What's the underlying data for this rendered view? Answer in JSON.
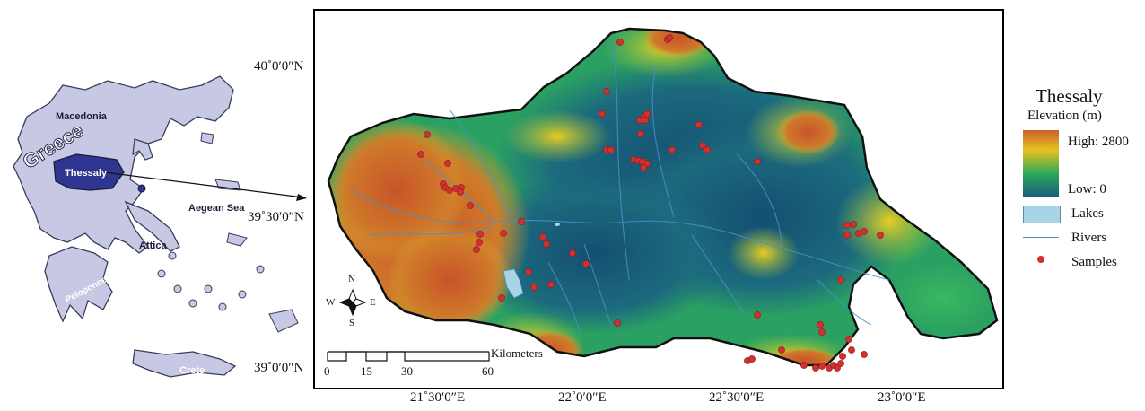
{
  "inset_map": {
    "labels": {
      "macedonia": "Macedonia",
      "greece": "Greece",
      "thessaly": "Thessaly",
      "aegean_sea": "Aegean Sea",
      "attica": "Attica",
      "peloponnese": "Peloponnese",
      "crete": "Crete"
    }
  },
  "main_map": {
    "lat_labels": [
      "40˚0′0″N",
      "39˚30′0″N",
      "39˚0′0″N"
    ],
    "lon_labels": [
      "21˚30′0″E",
      "22˚0′0″E",
      "22˚30′0″E",
      "23˚0′0″E"
    ],
    "scale_bar": {
      "unit": "Kilometers",
      "ticks": [
        "0",
        "15",
        "30",
        "60"
      ]
    },
    "compass": {
      "n": "N",
      "s": "S",
      "e": "E",
      "w": "W"
    },
    "sample_count": 70
  },
  "legend": {
    "title": "Thessaly",
    "subtitle": "Elevation (m)",
    "high": "High: 2800",
    "low": "Low: 0",
    "lakes": "Lakes",
    "rivers": "Rivers",
    "samples": "Samples",
    "colors": {
      "high": "#c8642a",
      "mid_high": "#e8c020",
      "mid": "#2ba85a",
      "low": "#1a5a7a",
      "lake": "#a8d4e6",
      "river": "#4a90c8",
      "sample": "#d32f2f"
    }
  }
}
